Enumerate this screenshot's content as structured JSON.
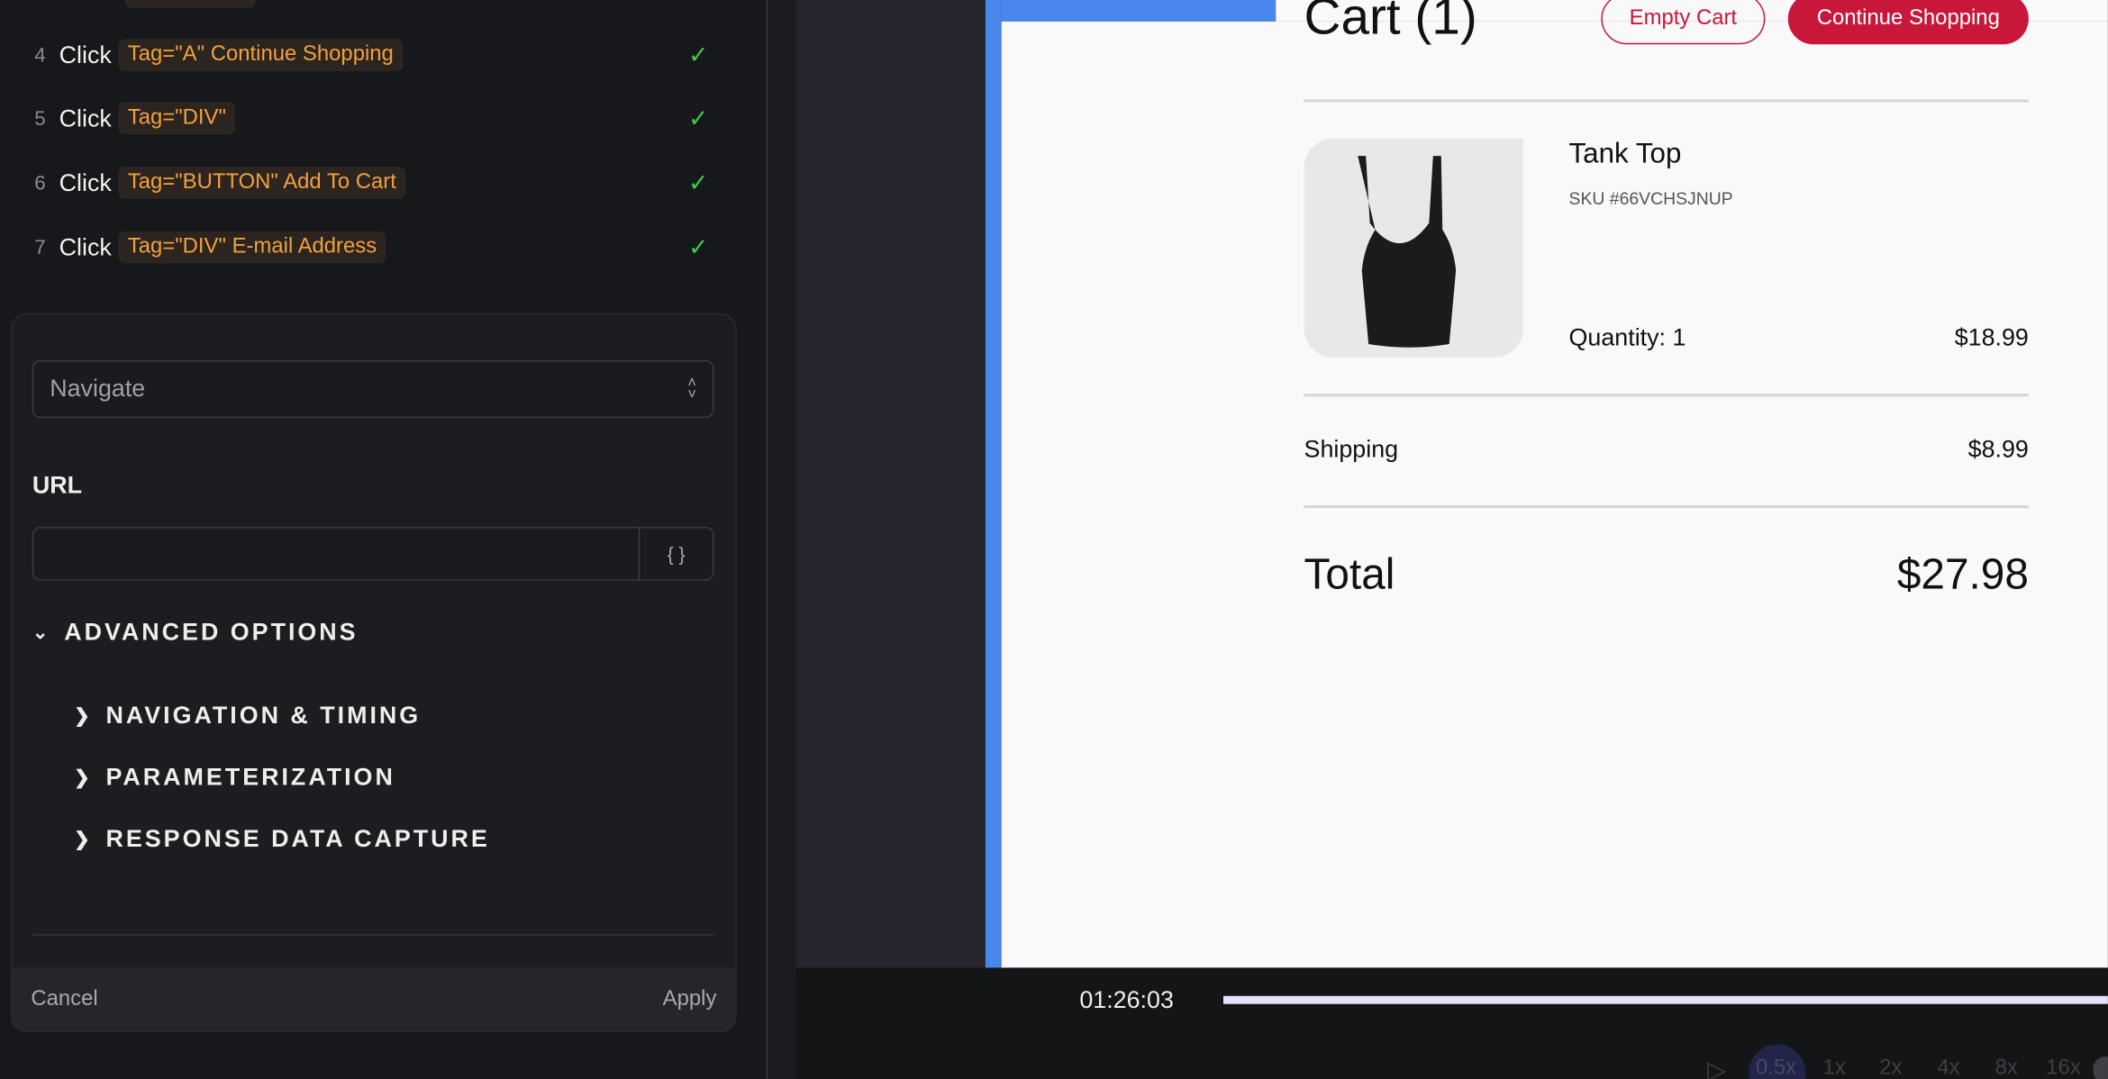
{
  "steps": [
    {
      "num": "4",
      "action": "Click",
      "tag": "Tag=\"A\" Continue Shopping",
      "status": "success"
    },
    {
      "num": "5",
      "action": "Click",
      "tag": "Tag=\"DIV\"",
      "status": "success"
    },
    {
      "num": "6",
      "action": "Click",
      "tag": "Tag=\"BUTTON\" Add To Cart",
      "status": "success"
    },
    {
      "num": "7",
      "action": "Click",
      "tag": "Tag=\"DIV\" E-mail Address",
      "status": "success"
    }
  ],
  "editor": {
    "action_select": "Navigate",
    "url_label": "URL",
    "url_value": "",
    "variable_button": "{ }",
    "advanced_options": "ADVANCED OPTIONS",
    "subsections": [
      "NAVIGATION & TIMING",
      "PARAMETERIZATION",
      "RESPONSE DATA CAPTURE"
    ],
    "cancel": "Cancel",
    "apply": "Apply"
  },
  "cart": {
    "title": "Cart (1)",
    "empty_cart": "Empty Cart",
    "continue_shopping": "Continue Shopping",
    "item": {
      "name": "Tank Top",
      "sku": "SKU #66VCHSJNUP",
      "quantity": "Quantity: 1",
      "price": "$18.99"
    },
    "shipping_label": "Shipping",
    "shipping_value": "$8.99",
    "total_label": "Total",
    "total_value": "$27.98",
    "accent": "#c8173a"
  },
  "player": {
    "time": "01:26:03",
    "speeds": [
      "0.5x",
      "1x",
      "2x",
      "4x",
      "8x",
      "16x"
    ],
    "selected_speed": "0.5x"
  }
}
